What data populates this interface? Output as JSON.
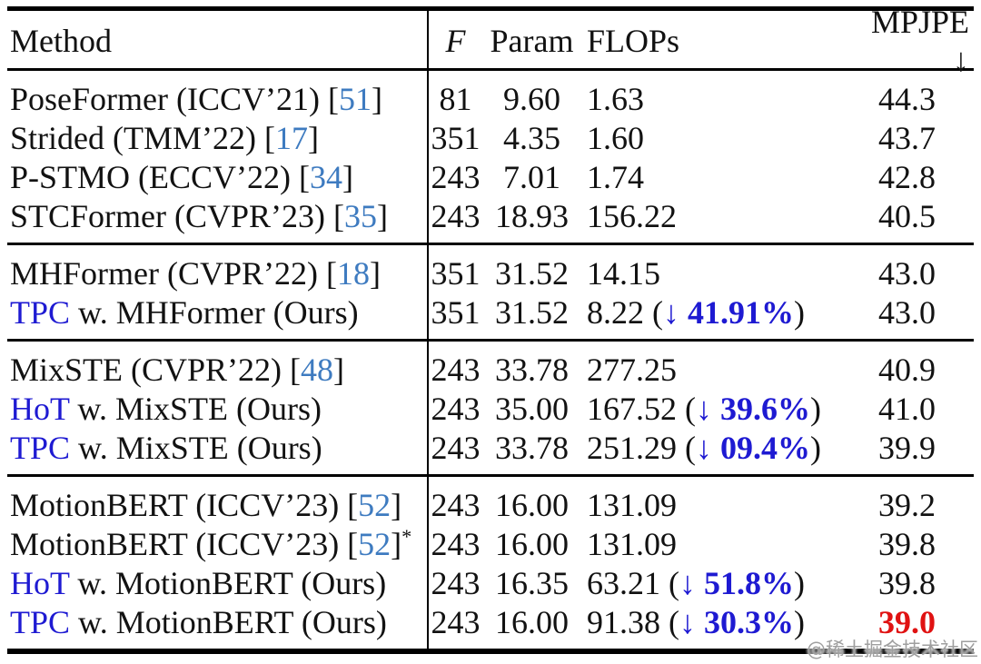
{
  "colors": {
    "text": "#121212",
    "citation_blue": "#3e7bc0",
    "accent_blue": "#1e1ad2",
    "best_red": "#e01212",
    "rule_black": "#000000",
    "watermark_gray": "#9f9f9f"
  },
  "header": {
    "method": "Method",
    "f": "F",
    "param": "Param",
    "flops": "FLOPs",
    "mpjpe": "MPJPE ↓"
  },
  "watermark": {
    "text": "@稀土掘金技术社区"
  },
  "table": {
    "type": "table",
    "rows": [
      {
        "hl": "",
        "pre": "PoseFormer (ICCV’21) [",
        "cite": "51",
        "post": "]",
        "star": "",
        "f": "81",
        "param": "9.60",
        "flops": "1.63",
        "arrow": "",
        "pct": "",
        "fclose": "",
        "mpjpe": "44.3",
        "best": false
      },
      {
        "hl": "",
        "pre": "Strided (TMM’22) [",
        "cite": "17",
        "post": "]",
        "star": "",
        "f": "351",
        "param": "4.35",
        "flops": "1.60",
        "arrow": "",
        "pct": "",
        "fclose": "",
        "mpjpe": "43.7",
        "best": false
      },
      {
        "hl": "",
        "pre": "P-STMO (ECCV’22) [",
        "cite": "34",
        "post": "]",
        "star": "",
        "f": "243",
        "param": "7.01",
        "flops": "1.74",
        "arrow": "",
        "pct": "",
        "fclose": "",
        "mpjpe": "42.8",
        "best": false
      },
      {
        "hl": "",
        "pre": "STCFormer (CVPR’23) [",
        "cite": "35",
        "post": "]",
        "star": "",
        "f": "243",
        "param": "18.93",
        "flops": "156.22",
        "arrow": "",
        "pct": "",
        "fclose": "",
        "mpjpe": "40.5",
        "best": false
      },
      {
        "hl": "",
        "pre": "MHFormer (CVPR’22) [",
        "cite": "18",
        "post": "]",
        "star": "",
        "f": "351",
        "param": "31.52",
        "flops": "14.15",
        "arrow": "",
        "pct": "",
        "fclose": "",
        "mpjpe": "43.0",
        "best": false
      },
      {
        "hl": "TPC",
        "pre": " w. MHFormer (Ours)",
        "cite": "",
        "post": "",
        "star": "",
        "f": "351",
        "param": "31.52",
        "flops": "8.22 (",
        "arrow": "↓ ",
        "pct": "41.91%",
        "fclose": ")",
        "mpjpe": "43.0",
        "best": false
      },
      {
        "hl": "",
        "pre": "MixSTE (CVPR’22) [",
        "cite": "48",
        "post": "]",
        "star": "",
        "f": "243",
        "param": "33.78",
        "flops": "277.25",
        "arrow": "",
        "pct": "",
        "fclose": "",
        "mpjpe": "40.9",
        "best": false
      },
      {
        "hl": "HoT",
        "pre": " w. MixSTE (Ours)",
        "cite": "",
        "post": "",
        "star": "",
        "f": "243",
        "param": "35.00",
        "flops": "167.52 (",
        "arrow": "↓ ",
        "pct": "39.6%",
        "fclose": ")",
        "mpjpe": "41.0",
        "best": false
      },
      {
        "hl": "TPC",
        "pre": " w. MixSTE (Ours)",
        "cite": "",
        "post": "",
        "star": "",
        "f": "243",
        "param": "33.78",
        "flops": "251.29 (",
        "arrow": "↓ ",
        "pct": "09.4%",
        "fclose": ")",
        "mpjpe": "39.9",
        "best": false
      },
      {
        "hl": "",
        "pre": "MotionBERT (ICCV’23) [",
        "cite": "52",
        "post": "]",
        "star": "",
        "f": "243",
        "param": "16.00",
        "flops": "131.09",
        "arrow": "",
        "pct": "",
        "fclose": "",
        "mpjpe": "39.2",
        "best": false
      },
      {
        "hl": "",
        "pre": "MotionBERT (ICCV’23) [",
        "cite": "52",
        "post": "]",
        "star": "*",
        "f": "243",
        "param": "16.00",
        "flops": "131.09",
        "arrow": "",
        "pct": "",
        "fclose": "",
        "mpjpe": "39.8",
        "best": false
      },
      {
        "hl": "HoT",
        "pre": " w. MotionBERT (Ours)",
        "cite": "",
        "post": "",
        "star": "",
        "f": "243",
        "param": "16.35",
        "flops": "63.21 (",
        "arrow": "↓ ",
        "pct": "51.8%",
        "fclose": ")",
        "mpjpe": "39.8",
        "best": false
      },
      {
        "hl": "TPC",
        "pre": " w. MotionBERT (Ours)",
        "cite": "",
        "post": "",
        "star": "",
        "f": "243",
        "param": "16.00",
        "flops": "91.38 (",
        "arrow": "↓ ",
        "pct": "30.3%",
        "fclose": ")",
        "mpjpe": "39.0",
        "best": true
      }
    ]
  }
}
